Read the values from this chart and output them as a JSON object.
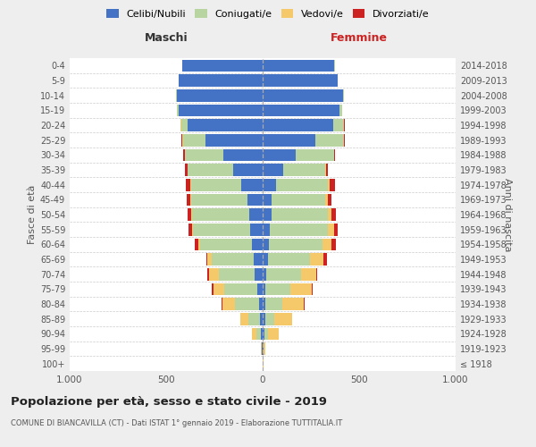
{
  "age_groups": [
    "100+",
    "95-99",
    "90-94",
    "85-89",
    "80-84",
    "75-79",
    "70-74",
    "65-69",
    "60-64",
    "55-59",
    "50-54",
    "45-49",
    "40-44",
    "35-39",
    "30-34",
    "25-29",
    "20-24",
    "15-19",
    "10-14",
    "5-9",
    "0-4"
  ],
  "birth_years": [
    "≤ 1918",
    "1919-1923",
    "1924-1928",
    "1929-1933",
    "1934-1938",
    "1939-1943",
    "1944-1948",
    "1949-1953",
    "1954-1958",
    "1959-1963",
    "1964-1968",
    "1969-1973",
    "1974-1978",
    "1979-1983",
    "1984-1988",
    "1989-1993",
    "1994-1998",
    "1999-2003",
    "2004-2008",
    "2009-2013",
    "2014-2018"
  ],
  "colors": {
    "celibi": "#4472C4",
    "coniugati": "#b8d4a0",
    "vedovi": "#f5c96a",
    "divorziati": "#cc2222"
  },
  "males": {
    "celibi": [
      2,
      3,
      8,
      15,
      20,
      30,
      40,
      45,
      55,
      65,
      70,
      80,
      110,
      155,
      205,
      295,
      390,
      435,
      445,
      435,
      415
    ],
    "coniugati": [
      0,
      3,
      25,
      60,
      125,
      168,
      188,
      218,
      268,
      298,
      295,
      292,
      262,
      232,
      196,
      118,
      32,
      8,
      4,
      2,
      1
    ],
    "vedovi": [
      0,
      3,
      22,
      42,
      62,
      57,
      52,
      22,
      10,
      5,
      4,
      3,
      2,
      2,
      2,
      2,
      2,
      0,
      0,
      0,
      0
    ],
    "divorziati": [
      0,
      0,
      0,
      0,
      4,
      8,
      8,
      8,
      18,
      18,
      18,
      18,
      22,
      12,
      8,
      4,
      2,
      0,
      0,
      0,
      0
    ]
  },
  "females": {
    "celibi": [
      2,
      3,
      10,
      14,
      14,
      14,
      19,
      29,
      34,
      39,
      44,
      48,
      68,
      108,
      172,
      272,
      368,
      398,
      418,
      388,
      372
    ],
    "coniugati": [
      0,
      2,
      18,
      48,
      88,
      128,
      178,
      218,
      278,
      298,
      292,
      278,
      272,
      218,
      198,
      148,
      52,
      12,
      4,
      2,
      1
    ],
    "vedovi": [
      1,
      8,
      55,
      92,
      112,
      112,
      82,
      67,
      46,
      32,
      22,
      12,
      6,
      3,
      2,
      2,
      2,
      0,
      0,
      0,
      0
    ],
    "divorziati": [
      0,
      0,
      0,
      0,
      4,
      4,
      4,
      18,
      22,
      22,
      22,
      18,
      28,
      8,
      4,
      4,
      2,
      0,
      0,
      0,
      0
    ]
  },
  "title": "Popolazione per età, sesso e stato civile - 2019",
  "subtitle": "COMUNE DI BIANCAVILLA (CT) - Dati ISTAT 1° gennaio 2019 - Elaborazione TUTTITALIA.IT",
  "xlabel_left": "Maschi",
  "xlabel_right": "Femmine",
  "ylabel_left": "Fasce di età",
  "ylabel_right": "Anni di nascita",
  "legend_labels": [
    "Celibi/Nubili",
    "Coniugati/e",
    "Vedovi/e",
    "Divorziati/e"
  ],
  "bg_color": "#eeeeee",
  "plot_bg_color": "#ffffff",
  "grid_color": "#cccccc",
  "xlim": 1000
}
